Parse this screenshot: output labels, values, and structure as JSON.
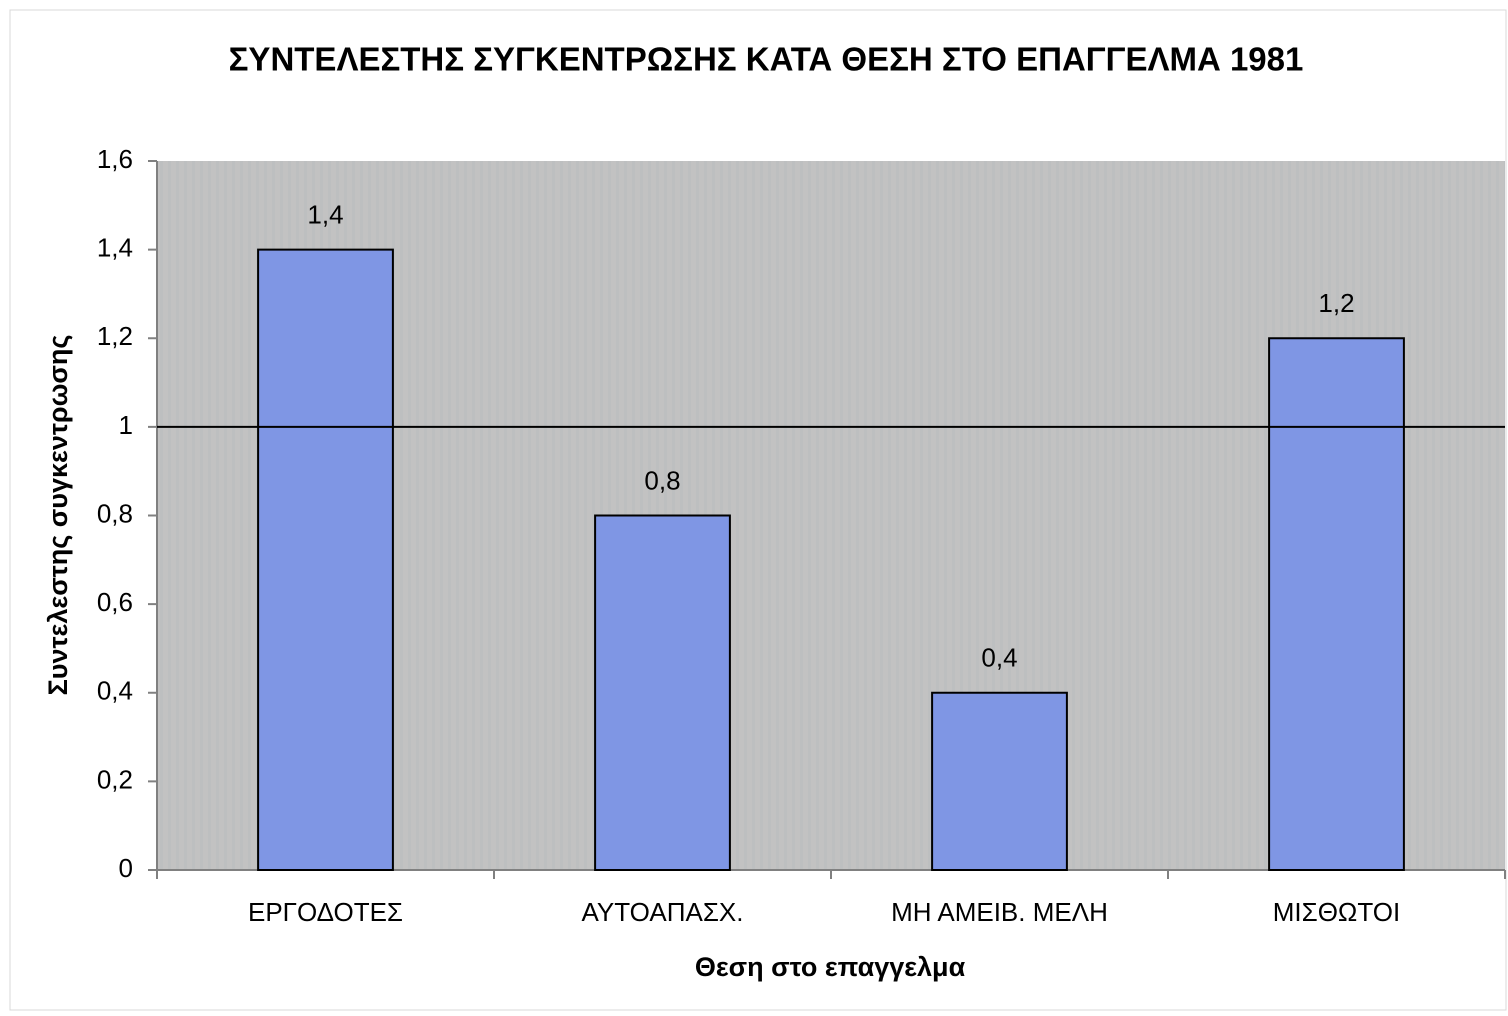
{
  "chart_data": {
    "type": "bar",
    "title": "ΣΥΝΤΕΛΕΣΤΗΣ ΣΥΓΚΕΝΤΡΩΣΗΣ ΚΑΤΑ ΘΕΣΗ ΣΤΟ ΕΠΑΓΓΕΛΜΑ 1981",
    "x_label": "Θεση στο επαγγελμα",
    "y_label": "Συντελεστης συγκεντρωσης",
    "categories": [
      "ΕΡΓΟΔΟΤΕΣ",
      "ΑΥΤΟΑΠΑΣΧ.",
      "ΜΗ ΑΜΕΙΒ. ΜΕΛΗ",
      "ΜΙΣΘΩΤΟΙ"
    ],
    "values": [
      1.4,
      0.8,
      0.4,
      1.2
    ],
    "value_labels": [
      "1,4",
      "0,8",
      "0,4",
      "1,2"
    ],
    "color": "#7f96e4",
    "ylim": [
      0,
      1.6
    ],
    "yticks": [
      0,
      {
        "value": 0.2,
        "label": "0,2"
      },
      {
        "value": 0.4,
        "label": "0,4"
      },
      {
        "value": 0.6,
        "label": "0,6"
      },
      {
        "value": 0.8,
        "label": "0,8"
      },
      1,
      {
        "value": 1.2,
        "label": "1,2"
      },
      {
        "value": 1.4,
        "label": "1,4"
      },
      {
        "value": 1.6,
        "label": "1,6"
      }
    ],
    "reference_line": 1,
    "grid": false
  }
}
